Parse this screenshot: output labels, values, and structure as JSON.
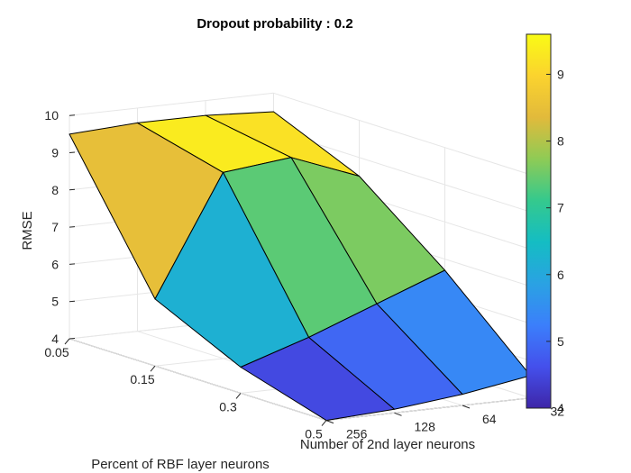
{
  "chart_data": {
    "type": "surface",
    "title": "Dropout probability : 0.2",
    "zlabel": "RMSE",
    "xlabel": "Number of 2nd layer neurons",
    "ylabel": "Percent of RBF layer neurons",
    "x_ticks": [
      "32",
      "64",
      "128",
      "256"
    ],
    "y_ticks": [
      "0.05",
      "0.15",
      "0.3",
      "0.5"
    ],
    "z_ticks": [
      "4",
      "5",
      "6",
      "7",
      "8",
      "9",
      "10"
    ],
    "zlim": [
      4,
      10
    ],
    "grid": true,
    "colormap": "parula",
    "colorbar": {
      "ticks": [
        "4",
        "5",
        "6",
        "7",
        "8",
        "9"
      ],
      "range": [
        4,
        9.6
      ],
      "stops": [
        "#3e26a8",
        "#4450ec",
        "#3b7ffb",
        "#2aa2e3",
        "#14bdc3",
        "#35c98d",
        "#8fcb55",
        "#e2ba3b",
        "#fbd32e",
        "#f9fb15"
      ]
    },
    "rows_pct_rbf": [
      "0.05",
      "0.15",
      "0.3",
      "0.5"
    ],
    "cols_neurons": [
      "256",
      "128",
      "64",
      "32"
    ],
    "rmse": [
      [
        9.5,
        9.6,
        9.6,
        9.5
      ],
      [
        5.8,
        9.0,
        9.2,
        8.5
      ],
      [
        4.7,
        5.3,
        6.0,
        6.7
      ],
      [
        4.0,
        4.1,
        4.3,
        4.6
      ]
    ]
  }
}
